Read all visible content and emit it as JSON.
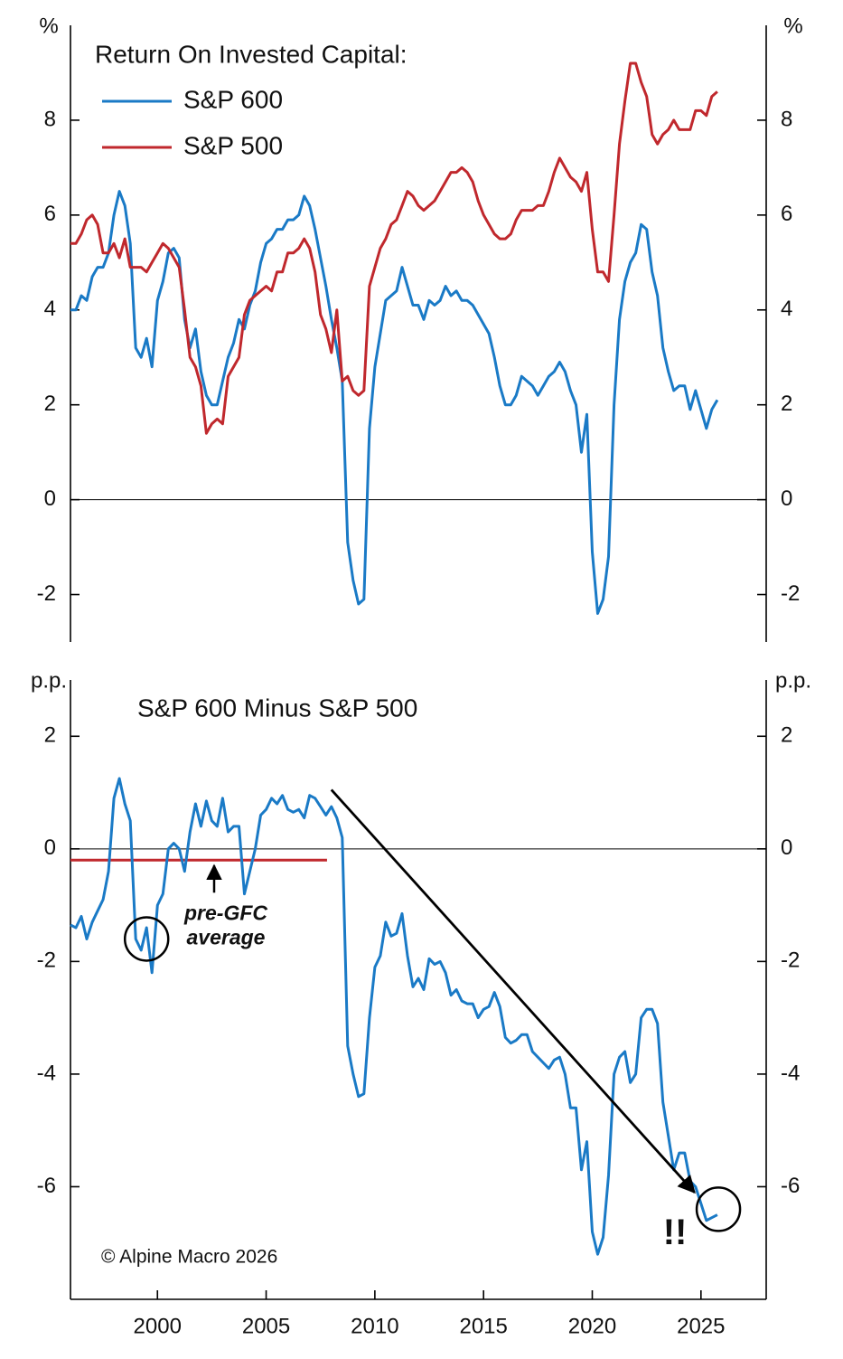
{
  "chart_data": [
    {
      "type": "line",
      "title": "Return On Invested Capital:",
      "unit_label": "%",
      "x": [
        1996,
        1996.25,
        1996.5,
        1996.75,
        1997,
        1997.25,
        1997.5,
        1997.75,
        1998,
        1998.25,
        1998.5,
        1998.75,
        1999,
        1999.25,
        1999.5,
        1999.75,
        2000,
        2000.25,
        2000.5,
        2000.75,
        2001,
        2001.25,
        2001.5,
        2001.75,
        2002,
        2002.25,
        2002.5,
        2002.75,
        2003,
        2003.25,
        2003.5,
        2003.75,
        2004,
        2004.25,
        2004.5,
        2004.75,
        2005,
        2005.25,
        2005.5,
        2005.75,
        2006,
        2006.25,
        2006.5,
        2006.75,
        2007,
        2007.25,
        2007.5,
        2007.75,
        2008,
        2008.25,
        2008.5,
        2008.75,
        2009,
        2009.25,
        2009.5,
        2009.75,
        2010,
        2010.25,
        2010.5,
        2010.75,
        2011,
        2011.25,
        2011.5,
        2011.75,
        2012,
        2012.25,
        2012.5,
        2012.75,
        2013,
        2013.25,
        2013.5,
        2013.75,
        2014,
        2014.25,
        2014.5,
        2014.75,
        2015,
        2015.25,
        2015.5,
        2015.75,
        2016,
        2016.25,
        2016.5,
        2016.75,
        2017,
        2017.25,
        2017.5,
        2017.75,
        2018,
        2018.25,
        2018.5,
        2018.75,
        2019,
        2019.25,
        2019.5,
        2019.75,
        2020,
        2020.25,
        2020.5,
        2020.75,
        2021,
        2021.25,
        2021.5,
        2021.75,
        2022,
        2022.25,
        2022.5,
        2022.75,
        2023,
        2023.25,
        2023.5,
        2023.75,
        2024,
        2024.25,
        2024.5,
        2024.75,
        2025,
        2025.25,
        2025.5,
        2025.75
      ],
      "series": [
        {
          "name": "S&P 600",
          "color": "#1a7ac6",
          "values": [
            4.0,
            4.0,
            4.3,
            4.2,
            4.7,
            4.9,
            4.9,
            5.2,
            6.0,
            6.5,
            6.2,
            5.4,
            3.2,
            3.0,
            3.4,
            2.8,
            4.2,
            4.6,
            5.2,
            5.3,
            5.1,
            3.8,
            3.2,
            3.6,
            2.7,
            2.2,
            2.0,
            2.0,
            2.5,
            3.0,
            3.3,
            3.8,
            3.6,
            4.1,
            4.4,
            5.0,
            5.4,
            5.5,
            5.7,
            5.7,
            5.9,
            5.9,
            6.0,
            6.4,
            6.2,
            5.7,
            5.1,
            4.5,
            3.8,
            3.2,
            2.5,
            -0.9,
            -1.7,
            -2.2,
            -2.1,
            1.5,
            2.8,
            3.5,
            4.2,
            4.3,
            4.4,
            4.9,
            4.5,
            4.1,
            4.1,
            3.8,
            4.2,
            4.1,
            4.2,
            4.5,
            4.3,
            4.4,
            4.2,
            4.2,
            4.1,
            3.9,
            3.7,
            3.5,
            3.0,
            2.4,
            2.0,
            2.0,
            2.2,
            2.6,
            2.5,
            2.4,
            2.2,
            2.4,
            2.6,
            2.7,
            2.9,
            2.7,
            2.3,
            2.0,
            1.0,
            1.8,
            -1.1,
            -2.4,
            -2.1,
            -1.2,
            2.0,
            3.8,
            4.6,
            5.0,
            5.2,
            5.8,
            5.7,
            4.8,
            4.3,
            3.2,
            2.7,
            2.3,
            2.4,
            2.4,
            1.9,
            2.3,
            1.9,
            1.5,
            1.9,
            2.1
          ]
        },
        {
          "name": "S&P 500",
          "color": "#c0282d",
          "values": [
            5.4,
            5.4,
            5.6,
            5.9,
            6.0,
            5.8,
            5.2,
            5.2,
            5.4,
            5.1,
            5.5,
            4.9,
            4.9,
            4.9,
            4.8,
            5.0,
            5.2,
            5.4,
            5.3,
            5.1,
            4.9,
            4.0,
            3.0,
            2.8,
            2.4,
            1.4,
            1.6,
            1.7,
            1.6,
            2.6,
            2.8,
            3.0,
            3.9,
            4.2,
            4.3,
            4.4,
            4.5,
            4.4,
            4.8,
            4.8,
            5.2,
            5.2,
            5.3,
            5.5,
            5.3,
            4.8,
            3.9,
            3.6,
            3.1,
            4.0,
            2.5,
            2.6,
            2.3,
            2.2,
            2.3,
            4.5,
            4.9,
            5.3,
            5.5,
            5.8,
            5.9,
            6.2,
            6.5,
            6.4,
            6.2,
            6.1,
            6.2,
            6.3,
            6.5,
            6.7,
            6.9,
            6.9,
            7.0,
            6.9,
            6.7,
            6.3,
            6.0,
            5.8,
            5.6,
            5.5,
            5.5,
            5.6,
            5.9,
            6.1,
            6.1,
            6.1,
            6.2,
            6.2,
            6.5,
            6.9,
            7.2,
            7.0,
            6.8,
            6.7,
            6.5,
            6.9,
            5.7,
            4.8,
            4.8,
            4.6,
            6.0,
            7.5,
            8.4,
            9.2,
            9.2,
            8.8,
            8.5,
            7.7,
            7.5,
            7.7,
            7.8,
            8.0,
            7.8,
            7.8,
            7.8,
            8.2,
            8.2,
            8.1,
            8.5,
            8.6
          ]
        }
      ],
      "xlim": [
        1996,
        2028
      ],
      "ylim": [
        -3,
        10
      ],
      "yticks": [
        -2,
        0,
        2,
        4,
        6,
        8
      ]
    },
    {
      "type": "line",
      "title": "S&P 600 Minus S&P 500",
      "unit_label": "p.p.",
      "x": [
        1996,
        1996.25,
        1996.5,
        1996.75,
        1997,
        1997.25,
        1997.5,
        1997.75,
        1998,
        1998.25,
        1998.5,
        1998.75,
        1999,
        1999.25,
        1999.5,
        1999.75,
        2000,
        2000.25,
        2000.5,
        2000.75,
        2001,
        2001.25,
        2001.5,
        2001.75,
        2002,
        2002.25,
        2002.5,
        2002.75,
        2003,
        2003.25,
        2003.5,
        2003.75,
        2004,
        2004.25,
        2004.5,
        2004.75,
        2005,
        2005.25,
        2005.5,
        2005.75,
        2006,
        2006.25,
        2006.5,
        2006.75,
        2007,
        2007.25,
        2007.5,
        2007.75,
        2008,
        2008.25,
        2008.5,
        2008.75,
        2009,
        2009.25,
        2009.5,
        2009.75,
        2010,
        2010.25,
        2010.5,
        2010.75,
        2011,
        2011.25,
        2011.5,
        2011.75,
        2012,
        2012.25,
        2012.5,
        2012.75,
        2013,
        2013.25,
        2013.5,
        2013.75,
        2014,
        2014.25,
        2014.5,
        2014.75,
        2015,
        2015.25,
        2015.5,
        2015.75,
        2016,
        2016.25,
        2016.5,
        2016.75,
        2017,
        2017.25,
        2017.5,
        2017.75,
        2018,
        2018.25,
        2018.5,
        2018.75,
        2019,
        2019.25,
        2019.5,
        2019.75,
        2020,
        2020.25,
        2020.5,
        2020.75,
        2021,
        2021.25,
        2021.5,
        2021.75,
        2022,
        2022.25,
        2022.5,
        2022.75,
        2023,
        2023.25,
        2023.5,
        2023.75,
        2024,
        2024.25,
        2024.5,
        2024.75,
        2025,
        2025.25,
        2025.5,
        2025.75
      ],
      "series": [
        {
          "color": "#1a7ac6",
          "values": [
            -1.35,
            -1.4,
            -1.2,
            -1.6,
            -1.3,
            -1.1,
            -0.9,
            -0.4,
            0.9,
            1.25,
            0.8,
            0.5,
            -1.6,
            -1.8,
            -1.4,
            -2.2,
            -1.0,
            -0.8,
            0.0,
            0.1,
            0.0,
            -0.4,
            0.3,
            0.8,
            0.4,
            0.85,
            0.5,
            0.4,
            0.9,
            0.3,
            0.4,
            0.4,
            -0.8,
            -0.4,
            0.0,
            0.6,
            0.7,
            0.9,
            0.8,
            0.95,
            0.7,
            0.65,
            0.7,
            0.55,
            0.95,
            0.9,
            0.75,
            0.6,
            0.75,
            0.55,
            0.2,
            -3.5,
            -4.0,
            -4.4,
            -4.35,
            -3.0,
            -2.1,
            -1.9,
            -1.3,
            -1.55,
            -1.5,
            -1.15,
            -1.9,
            -2.45,
            -2.3,
            -2.5,
            -1.95,
            -2.05,
            -2.0,
            -2.2,
            -2.6,
            -2.5,
            -2.7,
            -2.75,
            -2.75,
            -3.0,
            -2.85,
            -2.8,
            -2.55,
            -2.8,
            -3.35,
            -3.45,
            -3.4,
            -3.3,
            -3.3,
            -3.6,
            -3.7,
            -3.8,
            -3.9,
            -3.75,
            -3.7,
            -4.0,
            -4.6,
            -4.6,
            -5.7,
            -5.2,
            -6.8,
            -7.2,
            -6.9,
            -5.8,
            -4.0,
            -3.7,
            -3.6,
            -4.15,
            -4.0,
            -3.0,
            -2.85,
            -2.85,
            -3.1,
            -4.5,
            -5.1,
            -5.7,
            -5.4,
            -5.4,
            -5.9,
            -6.0,
            -6.3,
            -6.6,
            -6.55,
            -6.5
          ]
        }
      ],
      "xlim": [
        1996,
        2028
      ],
      "ylim": [
        -8,
        3
      ],
      "yticks": [
        -6,
        -4,
        -2,
        0,
        2
      ],
      "xticks": [
        2000,
        2005,
        2010,
        2015,
        2020,
        2025
      ],
      "reference_line": {
        "y": -0.2,
        "x": [
          1996,
          2007.8
        ],
        "color": "#c0282d",
        "label": [
          "pre-GFC",
          "average"
        ]
      },
      "highlight_circles": [
        {
          "x": 1999.5,
          "y": -1.6
        },
        {
          "x": 2025.8,
          "y": -6.4
        }
      ],
      "trend_arrow": {
        "x": [
          2008,
          2024.7
        ],
        "y": [
          1.05,
          -6.1
        ]
      },
      "emphasis": "!!",
      "source": "© Alpine Macro 2026"
    }
  ]
}
